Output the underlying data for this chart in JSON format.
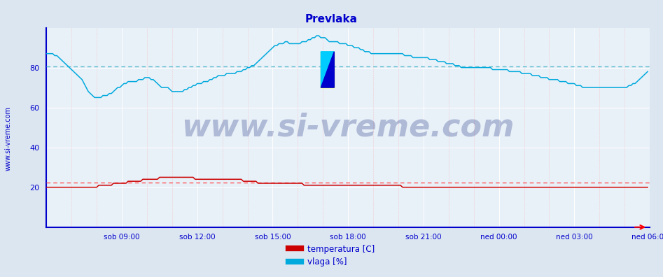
{
  "title": "Prevlaka",
  "title_color": "#0000cc",
  "title_fontsize": 11,
  "bg_color": "#dce6f0",
  "plot_bg_color": "#e8f0f8",
  "border_left_color": "#0000cc",
  "border_bottom_color": "#0000cc",
  "tick_label_color": "#0000cc",
  "ylim": [
    0,
    100
  ],
  "yticks": [
    20,
    40,
    60,
    80
  ],
  "watermark_text": "www.si-vreme.com",
  "watermark_color": "#1a3080",
  "watermark_alpha": 0.28,
  "watermark_fontsize": 32,
  "ylabel_text": "www.si-vreme.com",
  "ylabel_color": "#0000cc",
  "ylabel_fontsize": 7,
  "xtick_labels": [
    "sob 09:00",
    "sob 12:00",
    "sob 15:00",
    "sob 18:00",
    "sob 21:00",
    "ned 00:00",
    "ned 03:00",
    "ned 06:00"
  ],
  "n_points": 288,
  "temp_color": "#cc0000",
  "humidity_color": "#00aadd",
  "avg_temp_color": "#ff5555",
  "avg_humidity_color": "#55bbcc",
  "avg_temp_value": 22.5,
  "avg_humidity_value": 80.5,
  "legend_temp_label": "temperatura [C]",
  "legend_humidity_label": "vlaga [%]",
  "humidity_data": [
    87,
    87,
    87,
    87,
    86,
    86,
    85,
    84,
    83,
    82,
    81,
    80,
    79,
    78,
    77,
    76,
    75,
    74,
    72,
    70,
    68,
    67,
    66,
    65,
    65,
    65,
    65,
    66,
    66,
    66,
    67,
    67,
    68,
    69,
    70,
    70,
    71,
    72,
    72,
    73,
    73,
    73,
    73,
    73,
    74,
    74,
    74,
    75,
    75,
    75,
    74,
    74,
    73,
    72,
    71,
    70,
    70,
    70,
    70,
    69,
    68,
    68,
    68,
    68,
    68,
    68,
    69,
    69,
    70,
    70,
    71,
    71,
    72,
    72,
    72,
    73,
    73,
    73,
    74,
    74,
    75,
    75,
    76,
    76,
    76,
    76,
    77,
    77,
    77,
    77,
    77,
    78,
    78,
    78,
    79,
    79,
    80,
    80,
    81,
    81,
    82,
    83,
    84,
    85,
    86,
    87,
    88,
    89,
    90,
    91,
    91,
    92,
    92,
    92,
    93,
    93,
    92,
    92,
    92,
    92,
    92,
    92,
    93,
    93,
    93,
    94,
    94,
    95,
    95,
    96,
    96,
    95,
    95,
    95,
    94,
    93,
    93,
    93,
    93,
    93,
    92,
    92,
    92,
    92,
    91,
    91,
    91,
    90,
    90,
    90,
    89,
    89,
    88,
    88,
    88,
    87,
    87,
    87,
    87,
    87,
    87,
    87,
    87,
    87,
    87,
    87,
    87,
    87,
    87,
    87,
    87,
    86,
    86,
    86,
    86,
    85,
    85,
    85,
    85,
    85,
    85,
    85,
    85,
    84,
    84,
    84,
    84,
    83,
    83,
    83,
    83,
    82,
    82,
    82,
    82,
    81,
    81,
    81,
    80,
    80,
    80,
    80,
    80,
    80,
    80,
    80,
    80,
    80,
    80,
    80,
    80,
    80,
    80,
    79,
    79,
    79,
    79,
    79,
    79,
    79,
    79,
    78,
    78,
    78,
    78,
    78,
    78,
    77,
    77,
    77,
    77,
    77,
    76,
    76,
    76,
    76,
    75,
    75,
    75,
    75,
    74,
    74,
    74,
    74,
    74,
    73,
    73,
    73,
    73,
    72,
    72,
    72,
    72,
    71,
    71,
    71,
    70,
    70,
    70,
    70,
    70,
    70,
    70,
    70,
    70,
    70,
    70,
    70,
    70,
    70,
    70,
    70,
    70,
    70,
    70,
    70,
    70,
    70,
    71,
    71,
    72,
    72,
    73,
    74,
    75,
    76,
    77,
    78
  ],
  "temperature_data": [
    20,
    20,
    20,
    20,
    20,
    20,
    20,
    20,
    20,
    20,
    20,
    20,
    20,
    20,
    20,
    20,
    20,
    20,
    20,
    20,
    20,
    20,
    20,
    20,
    20,
    21,
    21,
    21,
    21,
    21,
    21,
    21,
    22,
    22,
    22,
    22,
    22,
    22,
    22,
    23,
    23,
    23,
    23,
    23,
    23,
    23,
    24,
    24,
    24,
    24,
    24,
    24,
    24,
    24,
    25,
    25,
    25,
    25,
    25,
    25,
    25,
    25,
    25,
    25,
    25,
    25,
    25,
    25,
    25,
    25,
    25,
    24,
    24,
    24,
    24,
    24,
    24,
    24,
    24,
    24,
    24,
    24,
    24,
    24,
    24,
    24,
    24,
    24,
    24,
    24,
    24,
    24,
    24,
    24,
    23,
    23,
    23,
    23,
    23,
    23,
    23,
    22,
    22,
    22,
    22,
    22,
    22,
    22,
    22,
    22,
    22,
    22,
    22,
    22,
    22,
    22,
    22,
    22,
    22,
    22,
    22,
    22,
    22,
    21,
    21,
    21,
    21,
    21,
    21,
    21,
    21,
    21,
    21,
    21,
    21,
    21,
    21,
    21,
    21,
    21,
    21,
    21,
    21,
    21,
    21,
    21,
    21,
    21,
    21,
    21,
    21,
    21,
    21,
    21,
    21,
    21,
    21,
    21,
    21,
    21,
    21,
    21,
    21,
    21,
    21,
    21,
    21,
    21,
    21,
    21,
    20,
    20,
    20,
    20,
    20,
    20,
    20,
    20,
    20,
    20,
    20,
    20,
    20,
    20,
    20,
    20,
    20,
    20,
    20,
    20,
    20,
    20,
    20,
    20,
    20,
    20,
    20,
    20,
    20,
    20,
    20,
    20,
    20,
    20,
    20,
    20,
    20,
    20,
    20,
    20,
    20,
    20,
    20,
    20,
    20,
    20,
    20,
    20,
    20,
    20,
    20,
    20,
    20,
    20,
    20,
    20,
    20,
    20,
    20,
    20,
    20,
    20,
    20,
    20,
    20,
    20,
    20,
    20,
    20,
    20,
    20,
    20,
    20,
    20,
    20,
    20,
    20,
    20,
    20,
    20,
    20,
    20,
    20,
    20,
    20,
    20,
    20,
    20,
    20,
    20,
    20,
    20,
    20,
    20,
    20,
    20,
    20,
    20,
    20,
    20,
    20,
    20,
    20,
    20,
    20,
    20,
    20,
    20,
    20,
    20,
    20,
    20,
    20,
    20,
    20,
    20,
    20,
    20
  ]
}
